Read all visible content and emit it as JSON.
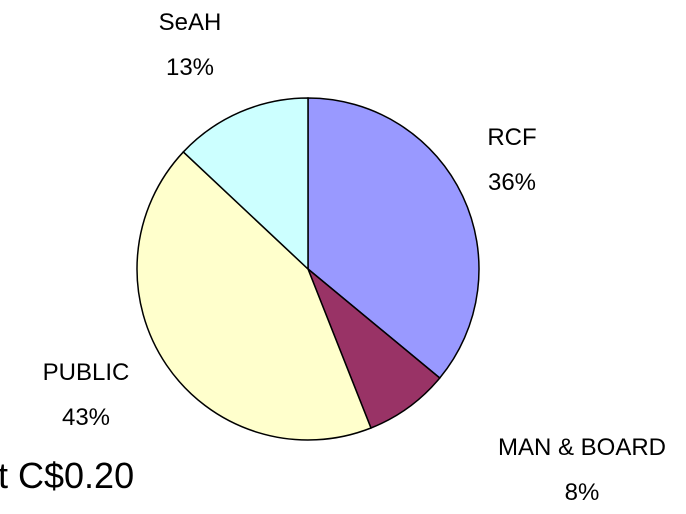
{
  "chart_data": {
    "type": "pie",
    "categories": [
      "RCF",
      "MAN & BOARD",
      "PUBLIC",
      "SeAH"
    ],
    "values": [
      36,
      8,
      43,
      13
    ],
    "value_labels": [
      "36%",
      "8%",
      "43%",
      "13%"
    ],
    "colors": [
      "#9999ff",
      "#993366",
      "#ffffcc",
      "#ccffff"
    ],
    "annotation": "t C$0.20"
  }
}
